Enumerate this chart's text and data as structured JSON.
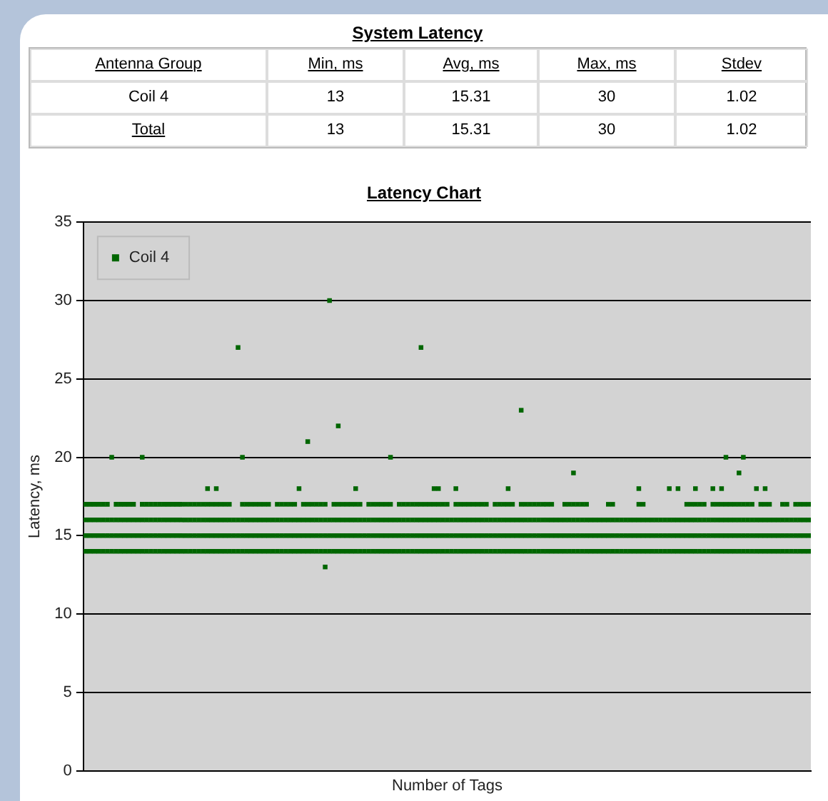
{
  "chart_data": [
    {
      "type": "other",
      "title": "System Latency",
      "annotations": [
        "Antenna Group",
        "Min, ms",
        "Avg, ms",
        "Max, ms",
        "Stdev",
        "Coil 4",
        "13",
        "15.31",
        "30",
        "1.02",
        "Total",
        "13",
        "15.31",
        "30",
        "1.02"
      ]
    },
    {
      "type": "scatter",
      "title": "Latency Chart",
      "xlabel": "Number of Tags",
      "ylabel": "Latency, ms",
      "ylim": [
        0,
        35
      ],
      "yticks": [
        0,
        5,
        10,
        15,
        20,
        25,
        30,
        35
      ],
      "grid": "y",
      "legend": "top left",
      "marker": "square",
      "categories": [
        null,
        null,
        null,
        null,
        null,
        null,
        null,
        null,
        null,
        null,
        null,
        null,
        null,
        null,
        null,
        null,
        null,
        null,
        null,
        null,
        null,
        null,
        null,
        null,
        null,
        null,
        null,
        null,
        null,
        null,
        null,
        null,
        null,
        null,
        null,
        null,
        null,
        null,
        null,
        null,
        null,
        null,
        null,
        null,
        null,
        null,
        null,
        null,
        null,
        null,
        null,
        null,
        null,
        null,
        null,
        null,
        null,
        null,
        null,
        null,
        null,
        null,
        null,
        null,
        null,
        null,
        null,
        null,
        null,
        null,
        null,
        null,
        null,
        null,
        null,
        null,
        null,
        null,
        null,
        null,
        null,
        null,
        null,
        null,
        null,
        null,
        null,
        null,
        null,
        null,
        null,
        null,
        null,
        null,
        null,
        null,
        null,
        null,
        null,
        null,
        null,
        null,
        null,
        null,
        null,
        null,
        null,
        null,
        null,
        null,
        null,
        null,
        null,
        null,
        null,
        null,
        null,
        null,
        null,
        null,
        null,
        null,
        null,
        null,
        null,
        null,
        null,
        null,
        null,
        null,
        null,
        null,
        null,
        null,
        null,
        null,
        null,
        null,
        null,
        null,
        null,
        null,
        null,
        null,
        null,
        null,
        null,
        null,
        null,
        null,
        null,
        null,
        null,
        null,
        null,
        null,
        null,
        null,
        null,
        null,
        null,
        null,
        null,
        null,
        null,
        null,
        null
      ],
      "series": [
        {
          "name": "Coil 4",
          "color": "#006600",
          "values": [
            null,
            null,
            null,
            null,
            null,
            null,
            20,
            null,
            null,
            null,
            null,
            null,
            null,
            20,
            null,
            null,
            null,
            null,
            null,
            null,
            null,
            null,
            null,
            null,
            null,
            null,
            null,
            null,
            18,
            null,
            18,
            null,
            null,
            null,
            null,
            27,
            20,
            null,
            null,
            null,
            null,
            null,
            null,
            null,
            null,
            null,
            null,
            null,
            null,
            18,
            null,
            21,
            null,
            null,
            null,
            13,
            30,
            null,
            22,
            null,
            null,
            null,
            18,
            null,
            null,
            null,
            null,
            null,
            null,
            null,
            20,
            null,
            null,
            null,
            null,
            null,
            null,
            27,
            null,
            null,
            18,
            18,
            null,
            null,
            null,
            18,
            null,
            null,
            null,
            null,
            null,
            null,
            null,
            null,
            null,
            null,
            null,
            18,
            null,
            null,
            23,
            null,
            null,
            null,
            null,
            null,
            null,
            null,
            null,
            null,
            null,
            null,
            19,
            null,
            null,
            null,
            null,
            null,
            null,
            null,
            null,
            null,
            null,
            null,
            null,
            null,
            null,
            18,
            null,
            null,
            null,
            null,
            null,
            null,
            18,
            null,
            18,
            null,
            null,
            null,
            18,
            null,
            null,
            null,
            18,
            null,
            18,
            20,
            null,
            null,
            19,
            20,
            null,
            null,
            18,
            null,
            18,
            null,
            null,
            null,
            null,
            null,
            null,
            null,
            null,
            null,
            null
          ]
        },
        {
          "color": "#006600",
          "values": [
            17,
            17,
            17,
            17,
            17,
            17,
            null,
            17,
            17,
            17,
            17,
            17,
            null,
            17,
            17,
            17,
            17,
            17,
            17,
            17,
            17,
            17,
            17,
            17,
            17,
            17,
            17,
            17,
            17,
            17,
            17,
            17,
            17,
            17,
            null,
            null,
            17,
            17,
            17,
            17,
            17,
            17,
            17,
            null,
            17,
            17,
            17,
            17,
            17,
            null,
            17,
            17,
            17,
            17,
            17,
            17,
            null,
            17,
            17,
            17,
            17,
            17,
            17,
            17,
            null,
            17,
            17,
            17,
            17,
            17,
            17,
            null,
            17,
            17,
            17,
            17,
            17,
            17,
            17,
            17,
            17,
            17,
            17,
            17,
            null,
            17,
            17,
            17,
            17,
            17,
            17,
            17,
            17,
            null,
            17,
            17,
            17,
            17,
            17,
            null,
            17,
            17,
            17,
            17,
            17,
            17,
            17,
            17,
            null,
            null,
            17,
            17,
            17,
            17,
            17,
            17,
            null,
            null,
            null,
            null,
            17,
            17,
            null,
            null,
            null,
            null,
            null,
            17,
            17,
            null,
            null,
            null,
            null,
            null,
            null,
            null,
            null,
            null,
            17,
            17,
            17,
            17,
            17,
            null,
            17,
            17,
            17,
            17,
            17,
            17,
            17,
            17,
            17,
            17,
            null,
            17,
            17,
            17,
            null,
            null,
            17,
            17,
            null,
            17,
            17,
            17,
            17
          ]
        },
        {
          "color": "#006600",
          "values": [
            16,
            16,
            16,
            16,
            16,
            16,
            16,
            16,
            16,
            16,
            16,
            16,
            16,
            16,
            16,
            16,
            16,
            16,
            16,
            16,
            16,
            16,
            16,
            16,
            16,
            16,
            16,
            16,
            16,
            16,
            16,
            16,
            16,
            16,
            16,
            16,
            16,
            16,
            16,
            16,
            16,
            16,
            16,
            16,
            16,
            16,
            16,
            16,
            16,
            16,
            16,
            16,
            16,
            16,
            16,
            16,
            16,
            16,
            16,
            16,
            16,
            16,
            16,
            16,
            16,
            16,
            16,
            16,
            16,
            16,
            16,
            16,
            16,
            16,
            16,
            16,
            16,
            16,
            16,
            16,
            16,
            16,
            16,
            16,
            16,
            16,
            16,
            16,
            16,
            16,
            16,
            16,
            16,
            16,
            16,
            16,
            16,
            16,
            16,
            16,
            16,
            16,
            16,
            16,
            16,
            16,
            16,
            16,
            16,
            16,
            16,
            16,
            16,
            16,
            16,
            16,
            16,
            16,
            16,
            16,
            16,
            16,
            16,
            16,
            16,
            16,
            16,
            16,
            16,
            16,
            16,
            16,
            16,
            16,
            16,
            16,
            16,
            16,
            16,
            16,
            16,
            16,
            16,
            16,
            16,
            16,
            16,
            16,
            16,
            16,
            16,
            16,
            16,
            16,
            16,
            16,
            16,
            16,
            16,
            16,
            16,
            16,
            16,
            16,
            16,
            16,
            16
          ]
        },
        {
          "color": "#006600",
          "values": [
            15,
            15,
            15,
            15,
            15,
            15,
            15,
            15,
            15,
            15,
            15,
            15,
            15,
            15,
            15,
            15,
            15,
            15,
            15,
            15,
            15,
            15,
            15,
            15,
            15,
            15,
            15,
            15,
            15,
            15,
            15,
            15,
            15,
            15,
            15,
            15,
            15,
            15,
            15,
            15,
            15,
            15,
            15,
            15,
            15,
            15,
            15,
            15,
            15,
            15,
            15,
            15,
            15,
            15,
            15,
            15,
            15,
            15,
            15,
            15,
            15,
            15,
            15,
            15,
            15,
            15,
            15,
            15,
            15,
            15,
            15,
            15,
            15,
            15,
            15,
            15,
            15,
            15,
            15,
            15,
            15,
            15,
            15,
            15,
            15,
            15,
            15,
            15,
            15,
            15,
            15,
            15,
            15,
            15,
            15,
            15,
            15,
            15,
            15,
            15,
            15,
            15,
            15,
            15,
            15,
            15,
            15,
            15,
            15,
            15,
            15,
            15,
            15,
            15,
            15,
            15,
            15,
            15,
            15,
            15,
            15,
            15,
            15,
            15,
            15,
            15,
            15,
            15,
            15,
            15,
            15,
            15,
            15,
            15,
            15,
            15,
            15,
            15,
            15,
            15,
            15,
            15,
            15,
            15,
            15,
            15,
            15,
            15,
            15,
            15,
            15,
            15,
            15,
            15,
            15,
            15,
            15,
            15,
            15,
            15,
            15,
            15,
            15,
            15,
            15,
            15,
            15
          ]
        },
        {
          "color": "#006600",
          "values": [
            14,
            14,
            14,
            14,
            14,
            14,
            14,
            14,
            14,
            14,
            14,
            14,
            14,
            14,
            14,
            14,
            14,
            14,
            14,
            14,
            14,
            14,
            14,
            14,
            14,
            14,
            14,
            14,
            14,
            14,
            14,
            14,
            14,
            14,
            14,
            14,
            14,
            14,
            14,
            14,
            14,
            14,
            14,
            14,
            14,
            14,
            14,
            14,
            14,
            14,
            14,
            14,
            14,
            14,
            14,
            14,
            14,
            14,
            14,
            14,
            14,
            14,
            14,
            14,
            14,
            14,
            14,
            14,
            14,
            14,
            14,
            14,
            14,
            14,
            14,
            14,
            14,
            14,
            14,
            14,
            14,
            14,
            14,
            14,
            14,
            14,
            14,
            14,
            14,
            14,
            14,
            14,
            14,
            14,
            14,
            14,
            14,
            14,
            14,
            14,
            14,
            14,
            14,
            14,
            14,
            14,
            14,
            14,
            14,
            14,
            14,
            14,
            14,
            14,
            14,
            14,
            14,
            14,
            14,
            14,
            14,
            14,
            14,
            14,
            14,
            14,
            14,
            14,
            14,
            14,
            14,
            14,
            14,
            14,
            14,
            14,
            14,
            14,
            14,
            14,
            14,
            14,
            14,
            14,
            14,
            14,
            14,
            14,
            14,
            14,
            14,
            14,
            14,
            14,
            14,
            14,
            14,
            14,
            14,
            14,
            14,
            14,
            14,
            14,
            14,
            14,
            14
          ]
        }
      ]
    }
  ]
}
